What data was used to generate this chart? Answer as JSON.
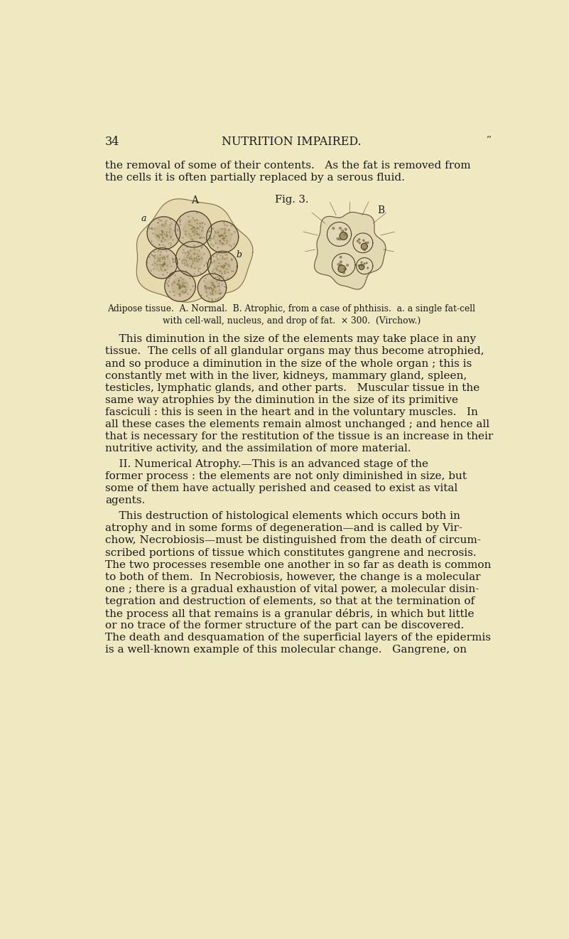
{
  "bg_color": "#f0e8c0",
  "page_width": 8.01,
  "page_height": 13.21,
  "dpi": 100,
  "page_number": "34",
  "header_title": "NUTRITION IMPAIRED.",
  "top_paragraph_line1": "the removal of some of their contents.   As the fat is removed from",
  "top_paragraph_line2": "the cells it is often partially replaced by a serous fluid.",
  "fig_label": "Fig. 3.",
  "caption_line1": "Adipose tissue.  A. Normal.  B. Atrophic, from a case of phthisis.  a. a single fat-cell",
  "caption_line2": "with cell-wall, nucleus, and drop of fat.  × 300.  (Virchow.)",
  "text_color": "#1a1a1a",
  "font_size_header": 11.5,
  "font_size_body": 11.0,
  "font_size_caption": 8.8,
  "font_size_fig": 10.5,
  "body_lines_para1": [
    "    This diminution in the size of the elements may take place in any",
    "tissue.  The cells of all glandular organs may thus become atrophied,",
    "and so produce a diminution in the size of the whole organ ; this is",
    "constantly met with in the liver, kidneys, mammary gland, spleen,",
    "testicles, lymphatic glands, and other parts.   Muscular tissue in the",
    "same way atrophies by the diminution in the size of its primitive",
    "fasciculi : this is seen in the heart and in the voluntary muscles.   In",
    "all these cases the elements remain almost unchanged ; and hence all",
    "that is necessary for the restitution of the tissue is an increase in their",
    "nutritive activity, and the assimilation of more material."
  ],
  "body_lines_para2": [
    "    II. Numerical Atrophy.—This is an advanced stage of the",
    "former process : the elements are not only diminished in size, but",
    "some of them have actually perished and ceased to exist as vital",
    "agents."
  ],
  "body_lines_para3": [
    "    This destruction of histological elements which occurs both in",
    "atrophy and in some forms of degeneration—and is called by Vir-",
    "chow, Necrobiosis—must be distinguished from the death of circum-",
    "scribed portions of tissue which constitutes gangrene and necrosis.",
    "The two processes resemble one another in so far as death is common",
    "to both of them.  In Necrobiosis, however, the change is a molecular",
    "one ; there is a gradual exhaustion of vital power, a molecular disin-",
    "tegration and destruction of elements, so that at the termination of",
    "the process all that remains is a granular débris, in which but little",
    "or no trace of the former structure of the part can be discovered.",
    "The death and desquamation of the superficial layers of the epidermis",
    "is a well-known example of this molecular change.   Gangrene, on"
  ]
}
